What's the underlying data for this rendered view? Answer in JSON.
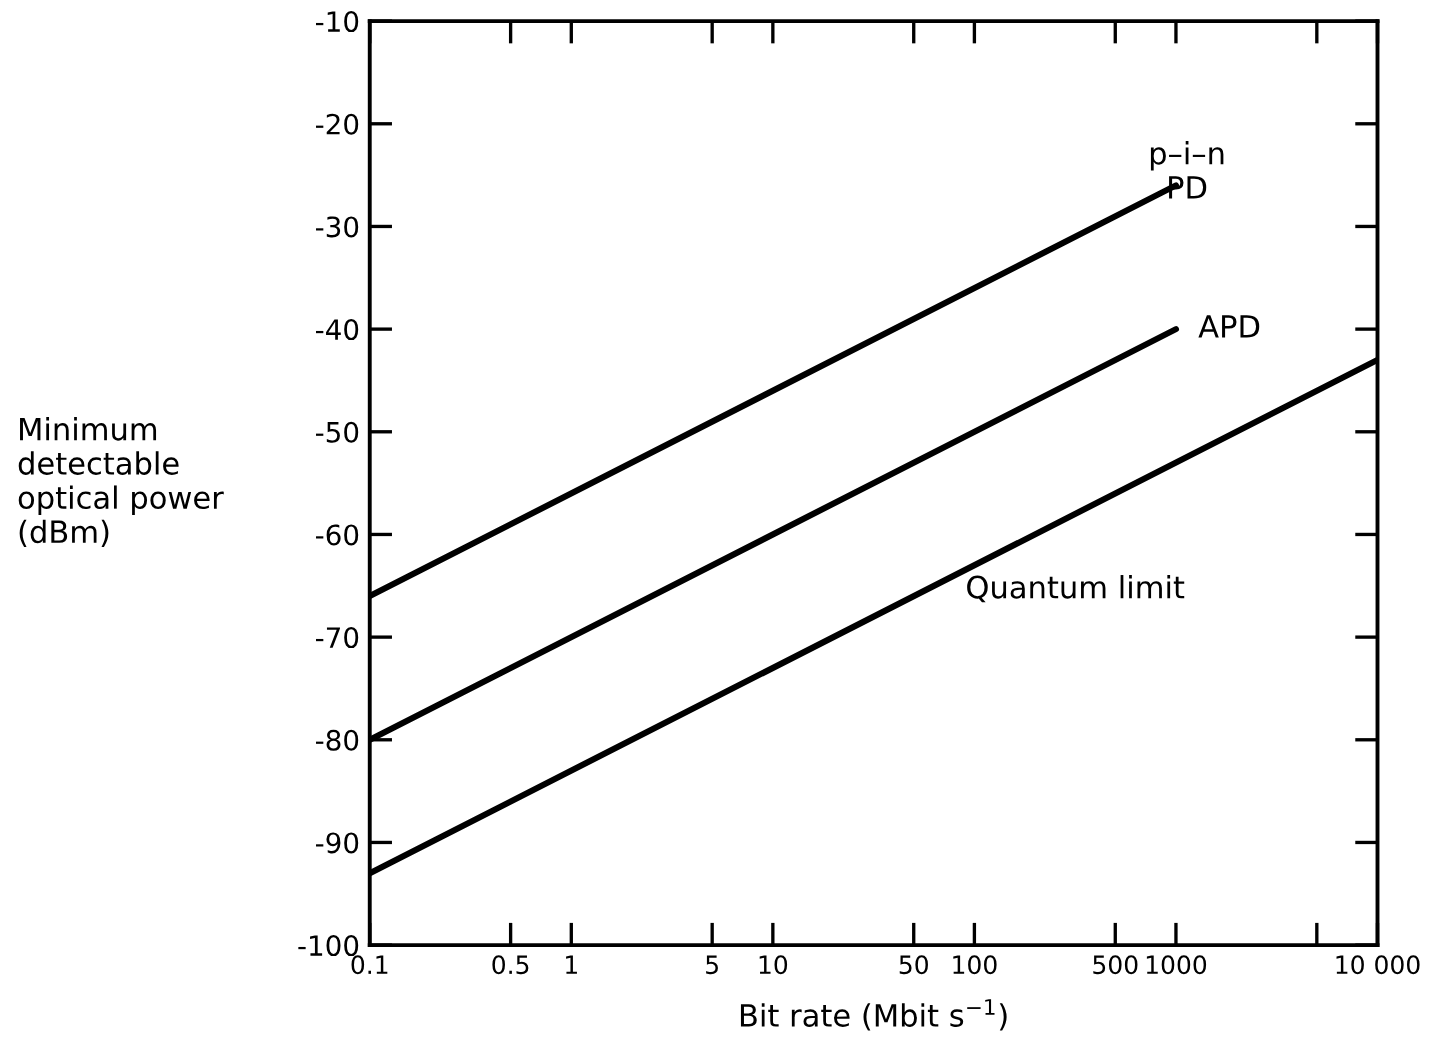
{
  "chart_data": {
    "type": "line",
    "xlabel": "Bit rate (Mbit s$^{−1}$)",
    "ylabel": "Minimum\ndetectable\noptical power\n(dBm)",
    "log": "x",
    "xlim": [
      0.1,
      10000
    ],
    "xticks": [
      0.1,
      0.5,
      1,
      5,
      10,
      50,
      100,
      500,
      1000,
      {
        "value": 5000,
        "label": null
      },
      {
        "value": 10000,
        "label": "10 000"
      }
    ],
    "ylim": [
      -100,
      -10
    ],
    "yticks": [
      -100,
      -90,
      -80,
      -70,
      -60,
      -50,
      -40,
      -30,
      -20,
      -10
    ],
    "grid": false,
    "legend": false,
    "marker": "none",
    "line_style": "solid",
    "series": [
      {
        "name": "p–i–n\nPD",
        "color": "#000000",
        "x": [
          0.1,
          1000
        ],
        "values": [
          -66,
          -26
        ]
      },
      {
        "name": "APD",
        "color": "#000000",
        "x": [
          0.1,
          1000
        ],
        "values": [
          -80,
          -40
        ]
      },
      {
        "name": "Quantum limit",
        "color": "#000000",
        "x": [
          0.1,
          10000
        ],
        "values": [
          -93,
          -43
        ]
      }
    ]
  }
}
